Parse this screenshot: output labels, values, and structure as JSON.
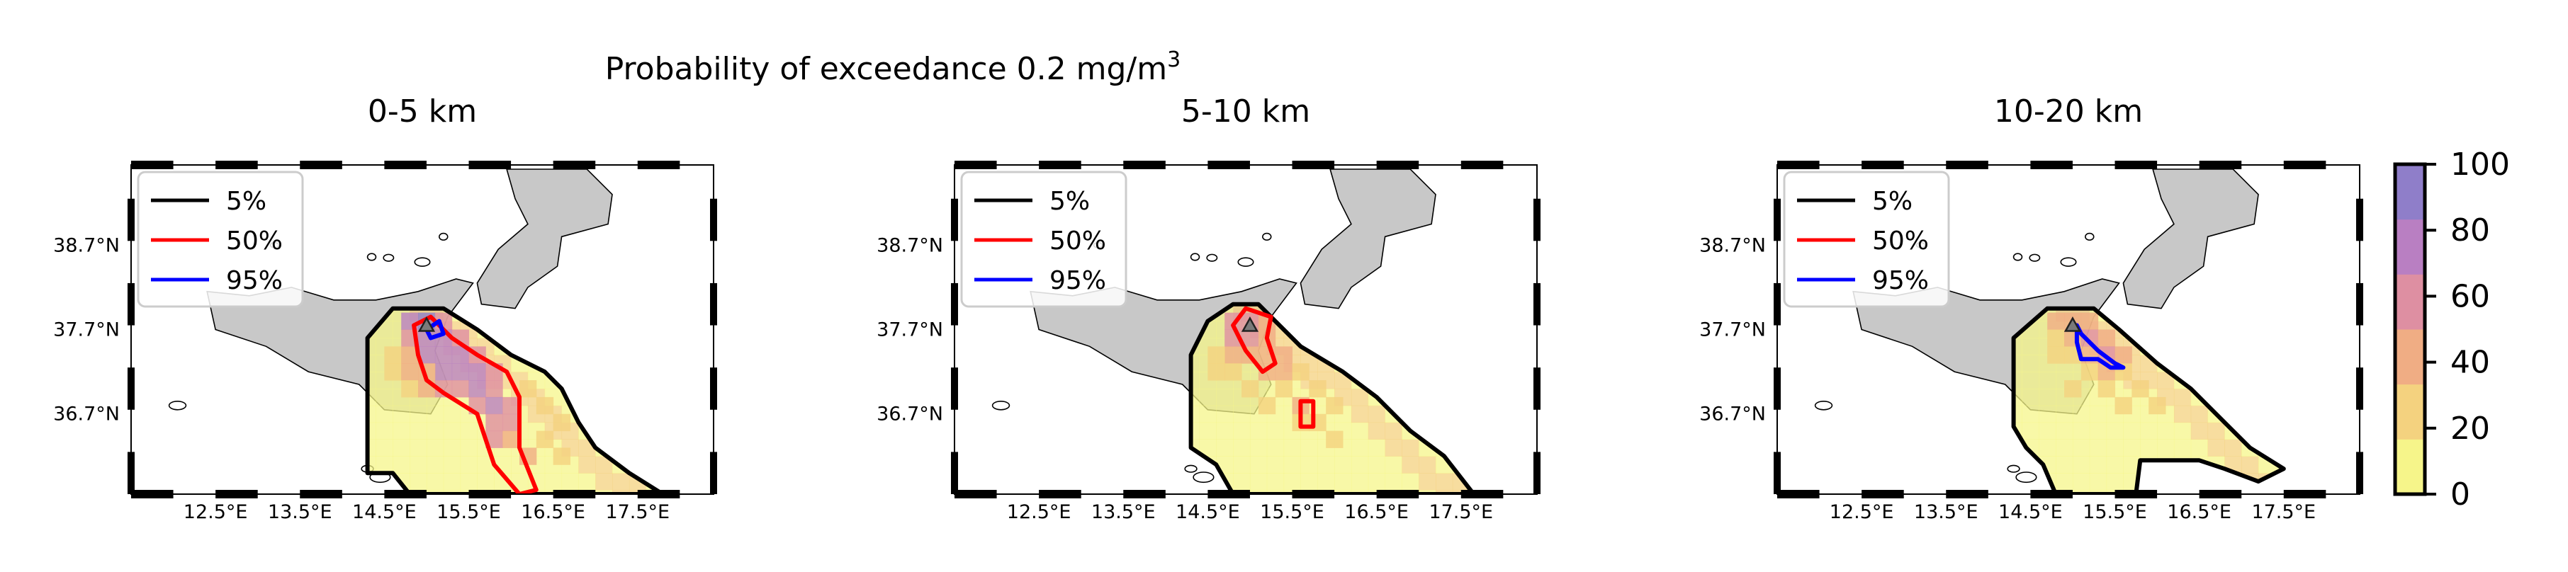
{
  "figure": {
    "suptitle_main": "Probability of exceedance 0.2 mg/m",
    "suptitle_sup": "3"
  },
  "chart_data": [
    {
      "type": "heatmap",
      "title": "0-5 km",
      "x_ticks": [
        "12.5°E",
        "13.5°E",
        "14.5°E",
        "15.5°E",
        "16.5°E",
        "17.5°E"
      ],
      "y_ticks": [
        "38.7°N",
        "37.7°N",
        "36.7°N"
      ],
      "xlim": [
        11.5,
        18.4
      ],
      "ylim": [
        35.75,
        39.65
      ],
      "legend": {
        "placement": "top-left",
        "entries": [
          {
            "label": "5%",
            "color": "#000000"
          },
          {
            "label": "50%",
            "color": "#ff0000"
          },
          {
            "label": "95%",
            "color": "#0000ff"
          }
        ]
      },
      "vent": [
        15.0,
        37.75
      ],
      "probability_cells": [
        {
          "lon": 14.8,
          "lat": 37.8,
          "p": 70
        },
        {
          "lon": 15.0,
          "lat": 37.8,
          "p": 85
        },
        {
          "lon": 15.2,
          "lat": 37.8,
          "p": 60
        },
        {
          "lon": 14.8,
          "lat": 37.6,
          "p": 65
        },
        {
          "lon": 15.0,
          "lat": 37.6,
          "p": 80
        },
        {
          "lon": 15.2,
          "lat": 37.6,
          "p": 75
        },
        {
          "lon": 15.4,
          "lat": 37.6,
          "p": 55
        },
        {
          "lon": 15.0,
          "lat": 37.4,
          "p": 70
        },
        {
          "lon": 15.2,
          "lat": 37.4,
          "p": 80
        },
        {
          "lon": 15.4,
          "lat": 37.4,
          "p": 75
        },
        {
          "lon": 15.6,
          "lat": 37.4,
          "p": 55
        },
        {
          "lon": 15.2,
          "lat": 37.2,
          "p": 70
        },
        {
          "lon": 15.4,
          "lat": 37.2,
          "p": 80
        },
        {
          "lon": 15.6,
          "lat": 37.2,
          "p": 70
        },
        {
          "lon": 15.8,
          "lat": 37.2,
          "p": 50
        },
        {
          "lon": 15.4,
          "lat": 37.0,
          "p": 65
        },
        {
          "lon": 15.6,
          "lat": 37.0,
          "p": 75
        },
        {
          "lon": 15.8,
          "lat": 37.0,
          "p": 60
        },
        {
          "lon": 15.6,
          "lat": 36.8,
          "p": 65
        },
        {
          "lon": 15.8,
          "lat": 36.8,
          "p": 70
        },
        {
          "lon": 16.0,
          "lat": 36.8,
          "p": 55
        },
        {
          "lon": 15.8,
          "lat": 36.6,
          "p": 60
        },
        {
          "lon": 16.0,
          "lat": 36.6,
          "p": 55
        },
        {
          "lon": 15.8,
          "lat": 36.4,
          "p": 50
        },
        {
          "lon": 16.0,
          "lat": 36.4,
          "p": 45
        },
        {
          "lon": 14.6,
          "lat": 37.4,
          "p": 30
        },
        {
          "lon": 14.8,
          "lat": 37.4,
          "p": 45
        },
        {
          "lon": 14.6,
          "lat": 37.2,
          "p": 25
        },
        {
          "lon": 14.8,
          "lat": 37.2,
          "p": 35
        },
        {
          "lon": 15.0,
          "lat": 37.2,
          "p": 45
        },
        {
          "lon": 14.8,
          "lat": 37.0,
          "p": 30
        },
        {
          "lon": 15.0,
          "lat": 37.0,
          "p": 40
        },
        {
          "lon": 15.2,
          "lat": 37.0,
          "p": 50
        },
        {
          "lon": 16.2,
          "lat": 37.0,
          "p": 30
        },
        {
          "lon": 16.4,
          "lat": 36.8,
          "p": 30
        },
        {
          "lon": 16.6,
          "lat": 36.6,
          "p": 25
        },
        {
          "lon": 16.4,
          "lat": 36.4,
          "p": 30
        },
        {
          "lon": 16.6,
          "lat": 36.2,
          "p": 25
        },
        {
          "lon": 16.2,
          "lat": 36.2,
          "p": 35
        }
      ],
      "contours": [
        {
          "level": "5%",
          "color": "#000000",
          "points": [
            [
              14.6,
              37.95
            ],
            [
              15.2,
              37.95
            ],
            [
              15.6,
              37.7
            ],
            [
              16.0,
              37.4
            ],
            [
              16.4,
              37.2
            ],
            [
              16.6,
              37.0
            ],
            [
              16.8,
              36.6
            ],
            [
              17.0,
              36.3
            ],
            [
              17.4,
              36.0
            ],
            [
              17.8,
              35.75
            ],
            [
              14.8,
              35.75
            ],
            [
              14.6,
              36.0
            ],
            [
              14.3,
              36.0
            ],
            [
              14.3,
              37.6
            ],
            [
              14.6,
              37.95
            ]
          ]
        },
        {
          "level": "50%",
          "color": "#ff0000",
          "points": [
            [
              14.85,
              37.75
            ],
            [
              15.05,
              37.85
            ],
            [
              15.3,
              37.6
            ],
            [
              15.6,
              37.4
            ],
            [
              15.95,
              37.2
            ],
            [
              16.1,
              36.9
            ],
            [
              16.1,
              36.6
            ],
            [
              16.1,
              36.3
            ],
            [
              16.3,
              35.8
            ],
            [
              16.1,
              35.75
            ],
            [
              15.8,
              36.1
            ],
            [
              15.7,
              36.4
            ],
            [
              15.6,
              36.7
            ],
            [
              15.2,
              36.95
            ],
            [
              15.0,
              37.1
            ],
            [
              14.9,
              37.4
            ],
            [
              14.85,
              37.75
            ]
          ]
        },
        {
          "level": "95%",
          "color": "#0000ff",
          "points": [
            [
              15.0,
              37.7
            ],
            [
              15.15,
              37.8
            ],
            [
              15.2,
              37.65
            ],
            [
              15.05,
              37.6
            ],
            [
              15.0,
              37.7
            ]
          ]
        }
      ]
    },
    {
      "type": "heatmap",
      "title": "5-10 km",
      "x_ticks": [
        "12.5°E",
        "13.5°E",
        "14.5°E",
        "15.5°E",
        "16.5°E",
        "17.5°E"
      ],
      "y_ticks": [
        "38.7°N",
        "37.7°N",
        "36.7°N"
      ],
      "xlim": [
        11.5,
        18.4
      ],
      "ylim": [
        35.75,
        39.65
      ],
      "legend": {
        "placement": "top-left",
        "entries": [
          {
            "label": "5%",
            "color": "#000000"
          },
          {
            "label": "50%",
            "color": "#ff0000"
          },
          {
            "label": "95%",
            "color": "#0000ff"
          }
        ]
      },
      "vent": [
        15.0,
        37.75
      ],
      "probability_cells": [
        {
          "lon": 14.8,
          "lat": 37.8,
          "p": 60
        },
        {
          "lon": 15.0,
          "lat": 37.8,
          "p": 65
        },
        {
          "lon": 15.2,
          "lat": 37.8,
          "p": 45
        },
        {
          "lon": 14.8,
          "lat": 37.6,
          "p": 55
        },
        {
          "lon": 15.0,
          "lat": 37.6,
          "p": 55
        },
        {
          "lon": 15.2,
          "lat": 37.6,
          "p": 45
        },
        {
          "lon": 14.8,
          "lat": 37.4,
          "p": 40
        },
        {
          "lon": 15.0,
          "lat": 37.4,
          "p": 45
        },
        {
          "lon": 15.2,
          "lat": 37.4,
          "p": 40
        },
        {
          "lon": 15.4,
          "lat": 37.4,
          "p": 35
        },
        {
          "lon": 15.2,
          "lat": 37.2,
          "p": 35
        },
        {
          "lon": 15.4,
          "lat": 37.2,
          "p": 35
        },
        {
          "lon": 15.6,
          "lat": 37.2,
          "p": 30
        },
        {
          "lon": 15.6,
          "lat": 36.8,
          "p": 45
        },
        {
          "lon": 15.4,
          "lat": 37.0,
          "p": 30
        },
        {
          "lon": 15.8,
          "lat": 37.0,
          "p": 25
        },
        {
          "lon": 15.6,
          "lat": 36.6,
          "p": 30
        },
        {
          "lon": 15.8,
          "lat": 36.6,
          "p": 25
        },
        {
          "lon": 16.0,
          "lat": 36.8,
          "p": 25
        },
        {
          "lon": 14.6,
          "lat": 37.4,
          "p": 30
        },
        {
          "lon": 14.6,
          "lat": 37.2,
          "p": 25
        },
        {
          "lon": 14.8,
          "lat": 37.2,
          "p": 30
        },
        {
          "lon": 15.0,
          "lat": 37.0,
          "p": 25
        },
        {
          "lon": 15.2,
          "lat": 36.8,
          "p": 20
        },
        {
          "lon": 16.0,
          "lat": 36.4,
          "p": 20
        }
      ],
      "contours": [
        {
          "level": "5%",
          "color": "#000000",
          "points": [
            [
              14.5,
              37.8
            ],
            [
              14.8,
              38.0
            ],
            [
              15.1,
              38.0
            ],
            [
              15.3,
              37.8
            ],
            [
              15.6,
              37.5
            ],
            [
              16.1,
              37.2
            ],
            [
              16.5,
              36.9
            ],
            [
              16.9,
              36.5
            ],
            [
              17.3,
              36.2
            ],
            [
              17.65,
              35.75
            ],
            [
              14.8,
              35.75
            ],
            [
              14.6,
              36.1
            ],
            [
              14.3,
              36.3
            ],
            [
              14.3,
              37.4
            ],
            [
              14.5,
              37.8
            ]
          ]
        },
        {
          "level": "50%",
          "color": "#ff0000",
          "points": [
            [
              14.8,
              37.75
            ],
            [
              14.95,
              37.95
            ],
            [
              15.25,
              37.85
            ],
            [
              15.2,
              37.6
            ],
            [
              15.3,
              37.3
            ],
            [
              15.15,
              37.2
            ],
            [
              14.95,
              37.45
            ],
            [
              14.8,
              37.75
            ]
          ]
        },
        {
          "level": "50%",
          "color": "#ff0000",
          "points": [
            [
              15.6,
              36.85
            ],
            [
              15.75,
              36.85
            ],
            [
              15.75,
              36.55
            ],
            [
              15.6,
              36.55
            ],
            [
              15.6,
              36.85
            ]
          ]
        }
      ]
    },
    {
      "type": "heatmap",
      "title": "10-20 km",
      "x_ticks": [
        "12.5°E",
        "13.5°E",
        "14.5°E",
        "15.5°E",
        "16.5°E",
        "17.5°E"
      ],
      "y_ticks": [
        "38.7°N",
        "37.7°N",
        "36.7°N"
      ],
      "xlim": [
        11.5,
        18.4
      ],
      "ylim": [
        35.75,
        39.65
      ],
      "legend": {
        "placement": "top-left",
        "entries": [
          {
            "label": "5%",
            "color": "#000000"
          },
          {
            "label": "50%",
            "color": "#ff0000"
          },
          {
            "label": "95%",
            "color": "#0000ff"
          }
        ]
      },
      "vent": [
        15.0,
        37.75
      ],
      "probability_cells": [
        {
          "lon": 14.8,
          "lat": 37.8,
          "p": 35
        },
        {
          "lon": 15.0,
          "lat": 37.8,
          "p": 45
        },
        {
          "lon": 15.2,
          "lat": 37.8,
          "p": 40
        },
        {
          "lon": 14.8,
          "lat": 37.6,
          "p": 30
        },
        {
          "lon": 15.0,
          "lat": 37.6,
          "p": 45
        },
        {
          "lon": 15.2,
          "lat": 37.6,
          "p": 50
        },
        {
          "lon": 15.4,
          "lat": 37.6,
          "p": 45
        },
        {
          "lon": 15.2,
          "lat": 37.4,
          "p": 45
        },
        {
          "lon": 15.4,
          "lat": 37.4,
          "p": 50
        },
        {
          "lon": 15.6,
          "lat": 37.4,
          "p": 40
        },
        {
          "lon": 14.8,
          "lat": 37.4,
          "p": 25
        },
        {
          "lon": 15.0,
          "lat": 37.4,
          "p": 30
        },
        {
          "lon": 15.2,
          "lat": 37.2,
          "p": 30
        },
        {
          "lon": 15.4,
          "lat": 37.2,
          "p": 35
        },
        {
          "lon": 15.6,
          "lat": 37.2,
          "p": 30
        },
        {
          "lon": 15.0,
          "lat": 37.0,
          "p": 20
        },
        {
          "lon": 15.4,
          "lat": 37.0,
          "p": 25
        },
        {
          "lon": 15.8,
          "lat": 37.0,
          "p": 25
        },
        {
          "lon": 16.0,
          "lat": 36.8,
          "p": 20
        },
        {
          "lon": 15.6,
          "lat": 36.8,
          "p": 20
        }
      ],
      "contours": [
        {
          "level": "5%",
          "color": "#000000",
          "points": [
            [
              14.3,
              37.6
            ],
            [
              14.7,
              37.95
            ],
            [
              15.25,
              37.95
            ],
            [
              15.55,
              37.7
            ],
            [
              16.0,
              37.3
            ],
            [
              16.4,
              37.0
            ],
            [
              16.8,
              36.6
            ],
            [
              17.1,
              36.3
            ],
            [
              17.5,
              36.05
            ],
            [
              17.2,
              35.9
            ],
            [
              16.8,
              36.05
            ],
            [
              16.5,
              36.15
            ],
            [
              15.8,
              36.15
            ],
            [
              15.75,
              35.75
            ],
            [
              14.8,
              35.75
            ],
            [
              14.65,
              36.1
            ],
            [
              14.45,
              36.3
            ],
            [
              14.3,
              36.55
            ],
            [
              14.3,
              37.6
            ]
          ]
        },
        {
          "level": "95%",
          "color": "#0000ff",
          "points": [
            [
              15.05,
              37.75
            ],
            [
              15.1,
              37.65
            ],
            [
              15.3,
              37.45
            ],
            [
              15.5,
              37.3
            ],
            [
              15.6,
              37.25
            ],
            [
              15.45,
              37.25
            ],
            [
              15.3,
              37.35
            ],
            [
              15.1,
              37.35
            ],
            [
              15.05,
              37.55
            ],
            [
              15.05,
              37.75
            ]
          ]
        }
      ]
    }
  ],
  "colorbar": {
    "ticks": [
      "0",
      "20",
      "40",
      "60",
      "80",
      "100"
    ],
    "range": [
      0,
      100
    ],
    "colors": [
      "#f6f58a",
      "#f4d27f",
      "#f0ad84",
      "#de8fa2",
      "#b97fc2",
      "#8f7ec9"
    ]
  }
}
